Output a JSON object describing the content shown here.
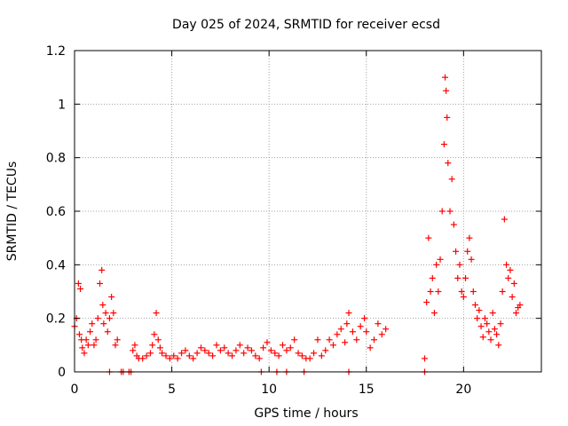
{
  "chart_data": {
    "type": "scatter",
    "title": "Day 025 of 2024, SRMTID for receiver ecsd",
    "xlabel": "GPS time / hours",
    "ylabel": "SRMTID / TECUs",
    "xlim": [
      0,
      24
    ],
    "ylim": [
      0,
      1.2
    ],
    "x_ticks": [
      0,
      5,
      10,
      15,
      20
    ],
    "y_ticks": [
      0,
      0.2,
      0.4,
      0.6,
      0.8,
      1.0,
      1.2
    ],
    "x_tick_labels": [
      "0",
      "5",
      "10",
      "15",
      "20"
    ],
    "y_tick_labels": [
      "0",
      "0.2",
      "0.4",
      "0.6",
      "0.8",
      "1",
      "1.2"
    ],
    "grid": true,
    "marker": "plus",
    "series_color": "#ff0000",
    "series": [
      {
        "name": "SRMTID",
        "x": [
          0.0,
          0.1,
          0.2,
          0.25,
          0.3,
          0.35,
          0.4,
          0.5,
          0.6,
          0.7,
          0.8,
          0.9,
          1.0,
          1.1,
          1.2,
          1.3,
          1.4,
          1.45,
          1.5,
          1.6,
          1.7,
          1.8,
          1.9,
          2.0,
          2.1,
          2.2,
          3.0,
          3.1,
          3.2,
          3.3,
          3.5,
          3.7,
          3.9,
          4.0,
          4.1,
          4.2,
          4.3,
          4.4,
          4.5,
          4.7,
          4.9,
          5.1,
          5.3,
          5.5,
          5.7,
          5.9,
          6.1,
          6.3,
          6.5,
          6.7,
          6.9,
          7.1,
          7.3,
          7.5,
          7.7,
          7.9,
          8.1,
          8.3,
          8.5,
          8.7,
          8.9,
          9.1,
          9.3,
          9.5,
          9.7,
          9.9,
          10.1,
          10.3,
          10.5,
          10.7,
          10.9,
          11.1,
          11.3,
          11.5,
          11.7,
          11.9,
          12.1,
          12.3,
          12.5,
          12.7,
          12.9,
          13.1,
          13.3,
          13.5,
          13.7,
          13.9,
          14.0,
          14.1,
          14.3,
          14.5,
          14.7,
          14.9,
          15.0,
          15.2,
          15.4,
          15.6,
          15.8,
          16.0,
          18.0,
          18.1,
          18.2,
          18.3,
          18.4,
          18.5,
          18.6,
          18.7,
          18.8,
          18.9,
          19.0,
          19.05,
          19.1,
          19.15,
          19.2,
          19.3,
          19.4,
          19.5,
          19.6,
          19.7,
          19.8,
          19.9,
          20.0,
          20.1,
          20.2,
          20.3,
          20.4,
          20.5,
          20.6,
          20.7,
          20.8,
          20.9,
          21.0,
          21.1,
          21.2,
          21.3,
          21.4,
          21.5,
          21.6,
          21.7,
          21.8,
          21.9,
          22.0,
          22.1,
          22.2,
          22.3,
          22.4,
          22.5,
          22.6,
          22.7,
          22.8,
          22.9,
          1.8,
          2.4,
          2.5,
          2.8,
          2.9,
          9.6,
          10.4,
          10.9,
          11.8,
          14.1,
          18.0
        ],
        "y": [
          0.17,
          0.2,
          0.33,
          0.14,
          0.31,
          0.12,
          0.09,
          0.07,
          0.12,
          0.1,
          0.15,
          0.18,
          0.1,
          0.12,
          0.2,
          0.33,
          0.38,
          0.25,
          0.18,
          0.22,
          0.15,
          0.2,
          0.28,
          0.22,
          0.1,
          0.12,
          0.08,
          0.1,
          0.06,
          0.05,
          0.05,
          0.06,
          0.07,
          0.1,
          0.14,
          0.22,
          0.12,
          0.09,
          0.07,
          0.06,
          0.05,
          0.06,
          0.05,
          0.07,
          0.08,
          0.06,
          0.05,
          0.07,
          0.09,
          0.08,
          0.07,
          0.06,
          0.1,
          0.08,
          0.09,
          0.07,
          0.06,
          0.08,
          0.1,
          0.07,
          0.09,
          0.08,
          0.06,
          0.05,
          0.09,
          0.11,
          0.08,
          0.07,
          0.06,
          0.1,
          0.08,
          0.09,
          0.12,
          0.07,
          0.06,
          0.05,
          0.05,
          0.07,
          0.12,
          0.06,
          0.08,
          0.12,
          0.1,
          0.14,
          0.16,
          0.11,
          0.18,
          0.22,
          0.15,
          0.12,
          0.17,
          0.2,
          0.15,
          0.09,
          0.12,
          0.18,
          0.14,
          0.16,
          0.05,
          0.26,
          0.5,
          0.3,
          0.35,
          0.22,
          0.4,
          0.3,
          0.42,
          0.6,
          0.85,
          1.1,
          1.05,
          0.95,
          0.78,
          0.6,
          0.72,
          0.55,
          0.45,
          0.35,
          0.4,
          0.3,
          0.28,
          0.35,
          0.45,
          0.5,
          0.42,
          0.3,
          0.25,
          0.2,
          0.23,
          0.17,
          0.13,
          0.2,
          0.18,
          0.15,
          0.12,
          0.22,
          0.16,
          0.14,
          0.1,
          0.18,
          0.3,
          0.57,
          0.4,
          0.35,
          0.38,
          0.28,
          0.33,
          0.22,
          0.24,
          0.25,
          0.0,
          0.0,
          0.0,
          0.0,
          0.0,
          0.0,
          0.0,
          0.0,
          0.0,
          0.0,
          0.0
        ]
      }
    ]
  }
}
